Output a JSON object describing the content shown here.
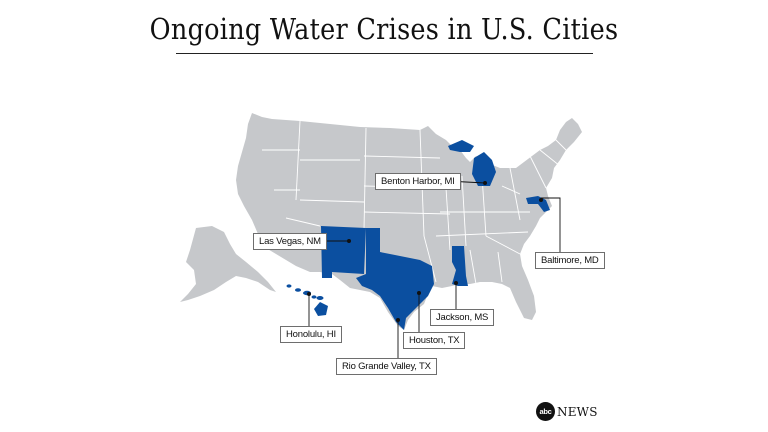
{
  "title": "Ongoing Water Crises in U.S. Cities",
  "colors": {
    "base_state": "#c6c8cb",
    "highlight_state": "#0b4fa0",
    "callout": "#111111"
  },
  "highlighted_states": [
    "Michigan",
    "Maryland",
    "New Mexico",
    "Texas",
    "Mississippi",
    "Hawaii"
  ],
  "locations": [
    {
      "label": "Benton Harbor, MI",
      "state": "Michigan"
    },
    {
      "label": "Baltimore, MD",
      "state": "Maryland"
    },
    {
      "label": "Las Vegas, NM",
      "state": "New Mexico"
    },
    {
      "label": "Jackson, MS",
      "state": "Mississippi"
    },
    {
      "label": "Honolulu, HI",
      "state": "Hawaii"
    },
    {
      "label": "Houston, TX",
      "state": "Texas"
    },
    {
      "label": "Rio Grande Valley, TX",
      "state": "Texas"
    }
  ],
  "brand": {
    "logo_text": "abc",
    "name": "NEWS"
  }
}
